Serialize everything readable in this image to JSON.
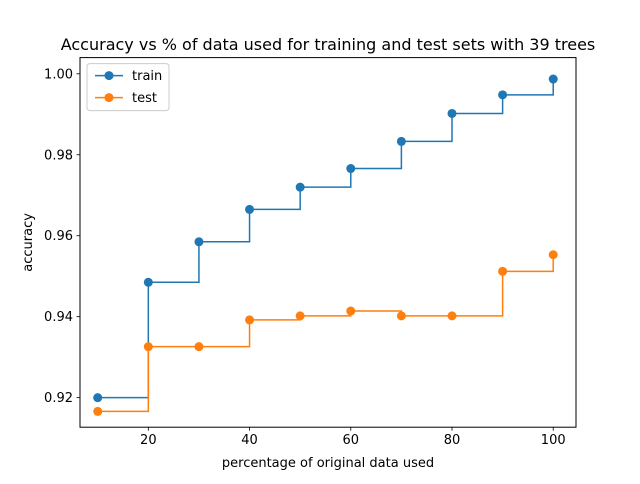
{
  "chart_data": {
    "type": "line",
    "step": "post",
    "title": "Accuracy vs % of data used for training and test sets with 39 trees",
    "xlabel": "percentage of original data used",
    "ylabel": "accuracy",
    "xlim": [
      6.5,
      104.5
    ],
    "ylim": [
      0.9127,
      1.004
    ],
    "xticks": [
      20,
      40,
      60,
      80,
      100
    ],
    "xtick_labels": [
      "20",
      "40",
      "60",
      "80",
      "100"
    ],
    "yticks": [
      0.92,
      0.94,
      0.96,
      0.98,
      1.0
    ],
    "ytick_labels": [
      "0.92",
      "0.94",
      "0.96",
      "0.98",
      "1.00"
    ],
    "grid": false,
    "legend_position": "top-left",
    "x": [
      10,
      20,
      30,
      40,
      50,
      60,
      70,
      80,
      90,
      100
    ],
    "series": [
      {
        "name": "train",
        "color": "#1f77b4",
        "values": [
          0.92,
          0.9485,
          0.9585,
          0.9665,
          0.972,
          0.9766,
          0.9833,
          0.9902,
          0.9948,
          0.9987
        ]
      },
      {
        "name": "test",
        "color": "#ff7f0e",
        "values": [
          0.9166,
          0.9326,
          0.9326,
          0.9392,
          0.9402,
          0.9414,
          0.9402,
          0.9402,
          0.9512,
          0.9553
        ]
      }
    ]
  }
}
